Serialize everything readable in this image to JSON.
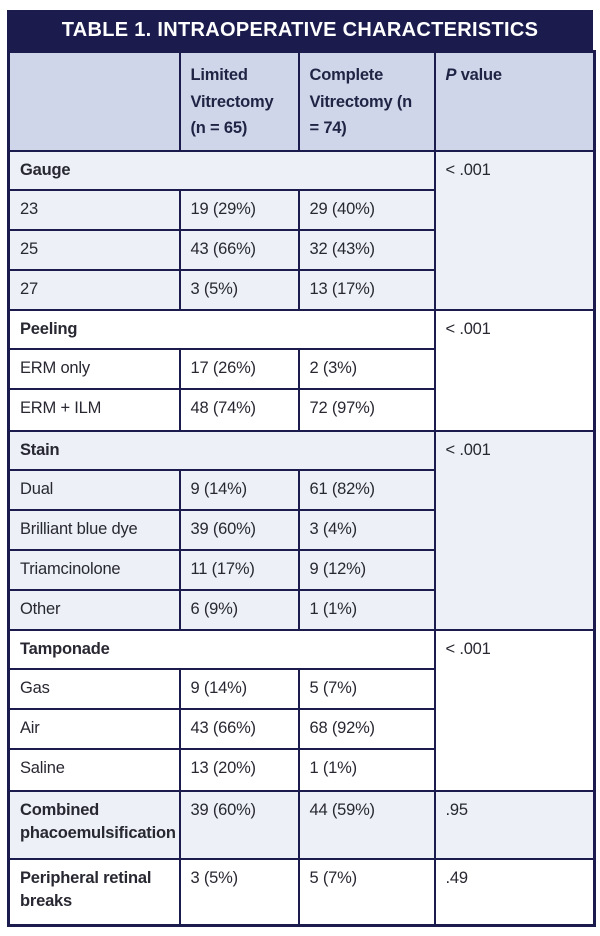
{
  "title": "TABLE 1. INTRAOPERATIVE CHARACTERISTICS",
  "header": {
    "columns": [
      "Limited Vitrectomy (n = 65)",
      "Complete Vitrectomy (n = 74)"
    ],
    "p_italic": "P",
    "p_rest": " value"
  },
  "sections": [
    {
      "label": "Gauge",
      "p_value": "< .001",
      "rows": [
        {
          "label": "23",
          "limited": "19 (29%)",
          "complete": "29 (40%)"
        },
        {
          "label": "25",
          "limited": "43 (66%)",
          "complete": "32 (43%)"
        },
        {
          "label": "27",
          "limited": "3 (5%)",
          "complete": "13 (17%)"
        }
      ]
    },
    {
      "label": "Peeling",
      "p_value": "< .001",
      "rows": [
        {
          "label": "ERM only",
          "limited": "17 (26%)",
          "complete": "2 (3%)"
        },
        {
          "label": "ERM + ILM",
          "limited": "48 (74%)",
          "complete": "72 (97%)"
        }
      ]
    },
    {
      "label": "Stain",
      "p_value": "< .001",
      "rows": [
        {
          "label": "Dual",
          "limited": "9 (14%)",
          "complete": "61 (82%)"
        },
        {
          "label": "Brilliant blue dye",
          "limited": "39 (60%)",
          "complete": "3 (4%)"
        },
        {
          "label": "Triamcinolone",
          "limited": "11 (17%)",
          "complete": "9 (12%)"
        },
        {
          "label": "Other",
          "limited": "6 (9%)",
          "complete": "1 (1%)"
        }
      ]
    },
    {
      "label": "Tamponade",
      "p_value": "< .001",
      "rows": [
        {
          "label": "Gas",
          "limited": "9 (14%)",
          "complete": "5 (7%)"
        },
        {
          "label": "Air",
          "limited": "43 (66%)",
          "complete": "68 (92%)"
        },
        {
          "label": "Saline",
          "limited": "13 (20%)",
          "complete": "1 (1%)"
        }
      ]
    }
  ],
  "summary_rows": [
    {
      "label": "Combined phacoemulsification",
      "limited": "39 (60%)",
      "complete": "44 (59%)",
      "p_value": ".95"
    },
    {
      "label": "Peripheral retinal breaks",
      "limited": "3 (5%)",
      "complete": "5 (7%)",
      "p_value": ".49"
    }
  ],
  "colors": {
    "navy": "#1b1c4d",
    "header_bg": "#cfd6e9",
    "shade_bg": "#edf0f6",
    "title_text": "#ffffff",
    "body_text": "#282832"
  }
}
